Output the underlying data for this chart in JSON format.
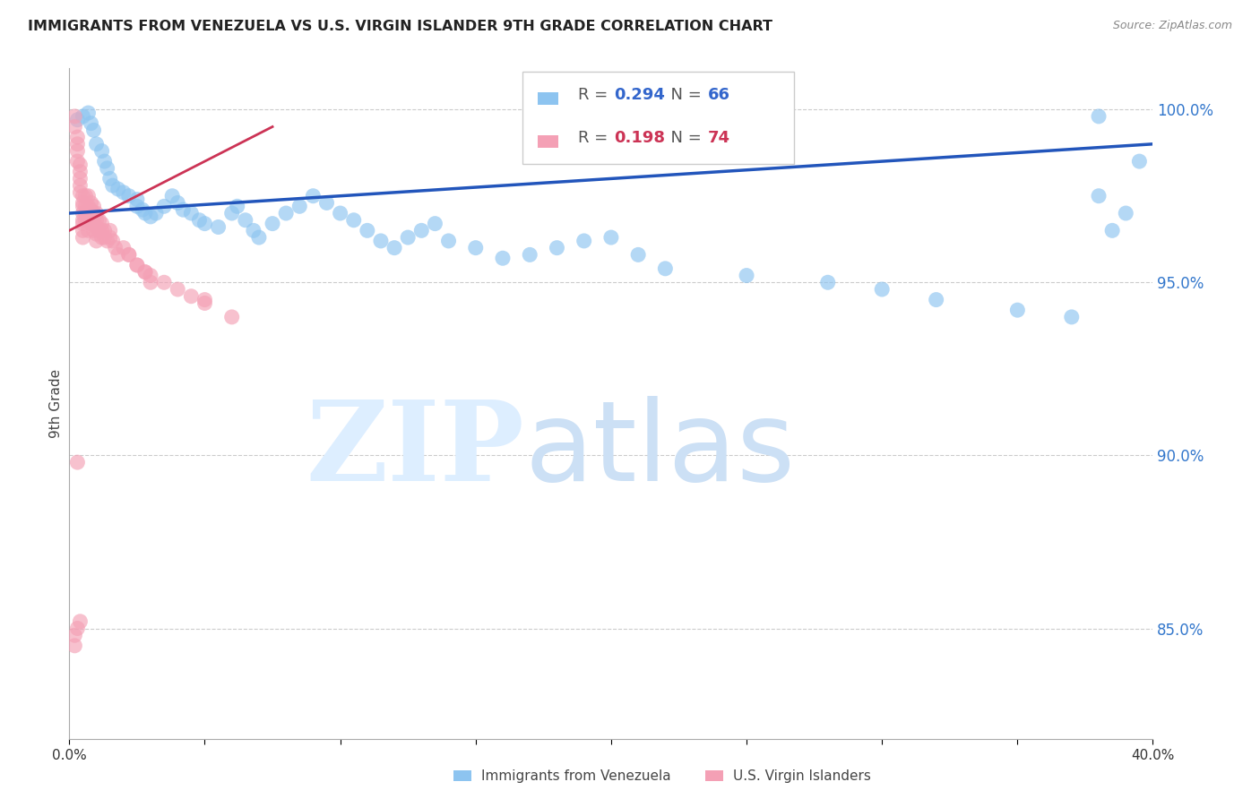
{
  "title": "IMMIGRANTS FROM VENEZUELA VS U.S. VIRGIN ISLANDER 9TH GRADE CORRELATION CHART",
  "source": "Source: ZipAtlas.com",
  "ylabel": "9th Grade",
  "yticks": [
    0.85,
    0.9,
    0.95,
    1.0
  ],
  "ytick_labels": [
    "85.0%",
    "90.0%",
    "95.0%",
    "100.0%"
  ],
  "xlim": [
    0.0,
    0.4
  ],
  "ylim": [
    0.818,
    1.012
  ],
  "legend_blue_R": "0.294",
  "legend_blue_N": "66",
  "legend_pink_R": "0.198",
  "legend_pink_N": "74",
  "blue_color": "#8DC4F0",
  "pink_color": "#F4A0B5",
  "blue_line_color": "#2255BB",
  "pink_line_color": "#CC3355",
  "blue_points_x": [
    0.003,
    0.005,
    0.007,
    0.008,
    0.009,
    0.01,
    0.012,
    0.013,
    0.014,
    0.015,
    0.016,
    0.018,
    0.02,
    0.022,
    0.025,
    0.025,
    0.027,
    0.028,
    0.03,
    0.032,
    0.035,
    0.038,
    0.04,
    0.042,
    0.045,
    0.048,
    0.05,
    0.055,
    0.06,
    0.062,
    0.065,
    0.068,
    0.07,
    0.075,
    0.08,
    0.085,
    0.09,
    0.095,
    0.1,
    0.105,
    0.11,
    0.115,
    0.12,
    0.125,
    0.13,
    0.135,
    0.14,
    0.15,
    0.16,
    0.17,
    0.18,
    0.19,
    0.2,
    0.21,
    0.22,
    0.25,
    0.28,
    0.3,
    0.32,
    0.35,
    0.37,
    0.38,
    0.38,
    0.385,
    0.39,
    0.395
  ],
  "blue_points_y": [
    0.997,
    0.998,
    0.999,
    0.996,
    0.994,
    0.99,
    0.988,
    0.985,
    0.983,
    0.98,
    0.978,
    0.977,
    0.976,
    0.975,
    0.974,
    0.972,
    0.971,
    0.97,
    0.969,
    0.97,
    0.972,
    0.975,
    0.973,
    0.971,
    0.97,
    0.968,
    0.967,
    0.966,
    0.97,
    0.972,
    0.968,
    0.965,
    0.963,
    0.967,
    0.97,
    0.972,
    0.975,
    0.973,
    0.97,
    0.968,
    0.965,
    0.962,
    0.96,
    0.963,
    0.965,
    0.967,
    0.962,
    0.96,
    0.957,
    0.958,
    0.96,
    0.962,
    0.963,
    0.958,
    0.954,
    0.952,
    0.95,
    0.948,
    0.945,
    0.942,
    0.94,
    0.998,
    0.975,
    0.965,
    0.97,
    0.985
  ],
  "pink_points_x": [
    0.002,
    0.002,
    0.003,
    0.003,
    0.003,
    0.003,
    0.004,
    0.004,
    0.004,
    0.004,
    0.004,
    0.005,
    0.005,
    0.005,
    0.005,
    0.005,
    0.005,
    0.005,
    0.005,
    0.006,
    0.006,
    0.006,
    0.006,
    0.007,
    0.007,
    0.007,
    0.007,
    0.007,
    0.008,
    0.008,
    0.008,
    0.008,
    0.009,
    0.009,
    0.009,
    0.009,
    0.01,
    0.01,
    0.01,
    0.01,
    0.01,
    0.011,
    0.011,
    0.012,
    0.012,
    0.012,
    0.013,
    0.013,
    0.014,
    0.015,
    0.015,
    0.016,
    0.017,
    0.018,
    0.02,
    0.022,
    0.025,
    0.028,
    0.03,
    0.035,
    0.04,
    0.045,
    0.05,
    0.002,
    0.002,
    0.003,
    0.004,
    0.003,
    0.022,
    0.025,
    0.028,
    0.03,
    0.05,
    0.06
  ],
  "pink_points_y": [
    0.998,
    0.995,
    0.992,
    0.99,
    0.988,
    0.985,
    0.984,
    0.982,
    0.98,
    0.978,
    0.976,
    0.975,
    0.973,
    0.972,
    0.97,
    0.968,
    0.967,
    0.965,
    0.963,
    0.975,
    0.972,
    0.97,
    0.968,
    0.975,
    0.972,
    0.97,
    0.968,
    0.965,
    0.973,
    0.971,
    0.969,
    0.967,
    0.972,
    0.97,
    0.968,
    0.965,
    0.97,
    0.968,
    0.966,
    0.964,
    0.962,
    0.968,
    0.965,
    0.967,
    0.965,
    0.963,
    0.965,
    0.963,
    0.962,
    0.965,
    0.963,
    0.962,
    0.96,
    0.958,
    0.96,
    0.958,
    0.955,
    0.953,
    0.952,
    0.95,
    0.948,
    0.946,
    0.944,
    0.845,
    0.848,
    0.85,
    0.852,
    0.898,
    0.958,
    0.955,
    0.953,
    0.95,
    0.945,
    0.94
  ]
}
